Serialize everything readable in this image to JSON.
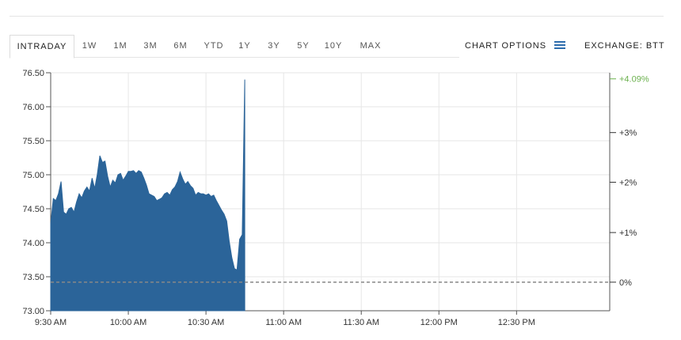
{
  "tabs": [
    {
      "label": "INTRADAY",
      "active": true
    },
    {
      "label": "1W"
    },
    {
      "label": "1M"
    },
    {
      "label": "3M"
    },
    {
      "label": "6M"
    },
    {
      "label": "YTD"
    },
    {
      "label": "1Y"
    },
    {
      "label": "3Y"
    },
    {
      "label": "5Y"
    },
    {
      "label": "10Y"
    },
    {
      "label": "MAX"
    }
  ],
  "chart_options_label": "CHART OPTIONS",
  "chart_options_icon": "hamburger-menu-icon",
  "exchange_label": "EXCHANGE: BTT",
  "colors": {
    "area_fill": "#2b6499",
    "accent": "#2e6dad",
    "positive": "#6ab04c",
    "baseline": "#888888",
    "grid": "#e6e6e6"
  },
  "chart_data": {
    "type": "area",
    "xlabel": "",
    "ylabel": "",
    "x_ticks": [
      "9:30 AM",
      "10:00 AM",
      "10:30 AM",
      "11:00 AM",
      "11:30 AM",
      "12:00 PM",
      "12:30 PM"
    ],
    "x_range_minutes": [
      0,
      216
    ],
    "y_ticks": [
      "76.50",
      "76.00",
      "75.50",
      "75.00",
      "74.50",
      "74.00",
      "73.50",
      "73.00"
    ],
    "ylim": [
      73.0,
      76.5
    ],
    "right_axis_ticks": [
      {
        "label": "+4.09%",
        "value": 76.41,
        "highlight": true
      },
      {
        "label": "+3%",
        "value": 75.62
      },
      {
        "label": "+2%",
        "value": 74.89
      },
      {
        "label": "+1%",
        "value": 74.15
      },
      {
        "label": "0%",
        "value": 73.42
      }
    ],
    "baseline": 73.42,
    "grid": true,
    "x_minutes": [
      0,
      1,
      2,
      3,
      4,
      5,
      6,
      7,
      8,
      9,
      10,
      11,
      12,
      13,
      14,
      15,
      16,
      17,
      18,
      19,
      20,
      21,
      22,
      23,
      24,
      25,
      26,
      27,
      28,
      29,
      30,
      31,
      32,
      33,
      34,
      35,
      36,
      37,
      38,
      39,
      40,
      41,
      42,
      43,
      44,
      45,
      46,
      47,
      48,
      49,
      50,
      51,
      52,
      53,
      54,
      55,
      56,
      57,
      58,
      59,
      60,
      61,
      62,
      63,
      64,
      65,
      66,
      67,
      68,
      69,
      70,
      71,
      72,
      73,
      74,
      75
    ],
    "values": [
      74.28,
      74.65,
      74.62,
      74.72,
      74.9,
      74.45,
      74.42,
      74.5,
      74.52,
      74.45,
      74.6,
      74.72,
      74.66,
      74.76,
      74.82,
      74.76,
      74.95,
      74.8,
      75.0,
      75.28,
      75.18,
      75.2,
      74.98,
      74.82,
      74.92,
      74.88,
      75.0,
      75.02,
      74.92,
      74.98,
      75.05,
      75.05,
      75.06,
      75.02,
      75.06,
      75.04,
      74.95,
      74.85,
      74.72,
      74.7,
      74.68,
      74.62,
      74.64,
      74.66,
      74.72,
      74.74,
      74.7,
      74.78,
      74.82,
      74.9,
      75.04,
      74.94,
      74.86,
      74.9,
      74.84,
      74.8,
      74.7,
      74.74,
      74.72,
      74.72,
      74.7,
      74.72,
      74.68,
      74.7,
      74.62,
      74.55,
      74.48,
      74.42,
      74.32,
      74.02,
      73.78,
      73.62,
      73.6,
      74.05,
      74.12,
      76.4
    ]
  }
}
